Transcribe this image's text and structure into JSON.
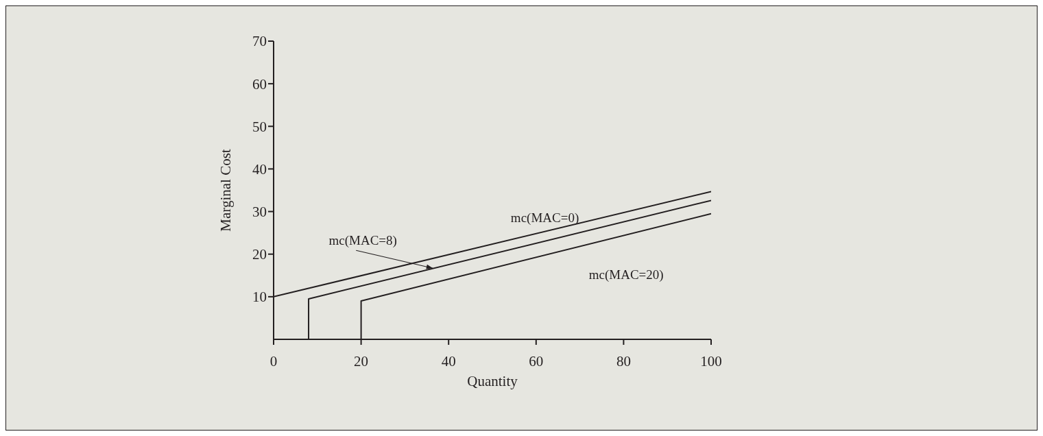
{
  "chart_data": {
    "type": "line",
    "xlabel": "Quantity",
    "ylabel": "Marginal Cost",
    "xlim": [
      0,
      100
    ],
    "ylim": [
      0,
      70
    ],
    "xticks": [
      0,
      20,
      40,
      60,
      80,
      100
    ],
    "yticks": [
      10,
      20,
      30,
      40,
      50,
      60,
      70
    ],
    "grid": false,
    "marker": "none",
    "line_style": "solid",
    "series": [
      {
        "name": "mc(MAC=0)",
        "color": "#231f20",
        "x": [
          0,
          100
        ],
        "values": [
          10,
          34.7
        ]
      },
      {
        "color": "#231f20",
        "x": [
          8,
          8,
          100
        ],
        "values": [
          0,
          9.5,
          32.6
        ]
      },
      {
        "name": "mc(MAC=20)",
        "color": "#231f20",
        "x": [
          20,
          20,
          100
        ],
        "values": [
          0,
          9,
          29.5
        ]
      }
    ],
    "annotations": [
      {
        "text": "mc(MAC=8)",
        "x": 36.4,
        "y": 16.7
      }
    ]
  }
}
